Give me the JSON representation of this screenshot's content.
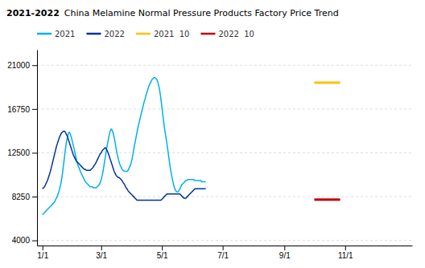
{
  "chart_data": {
    "type": "line",
    "title": "2021-2022",
    "subtitle": "China Melamine Normal Pressure Products Factory Price Trend",
    "xlim": [
      -4.46,
      372.28
    ],
    "xticks": [
      {
        "value": 1,
        "label": "1/1"
      },
      {
        "value": 60,
        "label": "3/1"
      },
      {
        "value": 121,
        "label": "5/1"
      },
      {
        "value": 182,
        "label": "7/1"
      },
      {
        "value": 244,
        "label": "9/1"
      },
      {
        "value": 305,
        "label": "11/1"
      }
    ],
    "ylim": [
      3500,
      22500
    ],
    "yticks": [
      4000,
      8250,
      12500,
      16750,
      21000
    ],
    "grid": true,
    "legend": "top",
    "series": [
      {
        "name": "2021",
        "color": "#00b0f0",
        "x": [
          1,
          2,
          3,
          4,
          5,
          6,
          7,
          8,
          9,
          10,
          11,
          12,
          13,
          14,
          15,
          16,
          17,
          18,
          19,
          20,
          21,
          22,
          23,
          24,
          25,
          26,
          27,
          28,
          29,
          30,
          31,
          32,
          33,
          34,
          35,
          36,
          37,
          38,
          39,
          40,
          41,
          42,
          43,
          44,
          45,
          46,
          47,
          48,
          49,
          50,
          51,
          52,
          53,
          54,
          55,
          56,
          57,
          58,
          59,
          60,
          61,
          62,
          63,
          64,
          65,
          66,
          67,
          68,
          69,
          70,
          71,
          72,
          73,
          74,
          75,
          76,
          77,
          78,
          79,
          80,
          81,
          82,
          83,
          84,
          85,
          86,
          87,
          88,
          89,
          90,
          91,
          92,
          93,
          94,
          95,
          96,
          97,
          98,
          99,
          100,
          101,
          102,
          103,
          104,
          105,
          106,
          107,
          108,
          109,
          110,
          111,
          112,
          113,
          114,
          115,
          116,
          117,
          118,
          119,
          120,
          121,
          122,
          123,
          124,
          125,
          126,
          127,
          128,
          129,
          130,
          131,
          132,
          133,
          134,
          135,
          136,
          137,
          138,
          139,
          140,
          141,
          142,
          143,
          144,
          145,
          146,
          147,
          148,
          149,
          150,
          151,
          152,
          153,
          154,
          155,
          156,
          157,
          158,
          159,
          160,
          161,
          162,
          163,
          164,
          165
        ],
        "values": [
          6500,
          6600,
          6700,
          6800,
          6900,
          7000,
          7100,
          7200,
          7300,
          7400,
          7500,
          7600,
          7700,
          7900,
          8100,
          8300,
          8600,
          8900,
          9300,
          9800,
          10400,
          11200,
          12000,
          12800,
          13500,
          14000,
          14400,
          14500,
          14300,
          14000,
          13600,
          13200,
          12800,
          12300,
          11900,
          11500,
          11200,
          11000,
          10700,
          10500,
          10300,
          10100,
          9900,
          9700,
          9600,
          9500,
          9400,
          9300,
          9200,
          9200,
          9200,
          9100,
          9100,
          9100,
          9100,
          9200,
          9300,
          9400,
          9600,
          9900,
          10300,
          10800,
          11400,
          12000,
          12600,
          13200,
          13700,
          14200,
          14600,
          14800,
          14700,
          14400,
          14000,
          13500,
          12900,
          12400,
          12000,
          11600,
          11300,
          11100,
          10900,
          10800,
          10700,
          10700,
          10700,
          10700,
          10800,
          11000,
          11200,
          11500,
          11900,
          12400,
          13000,
          13500,
          14000,
          14500,
          15000,
          15400,
          15800,
          16200,
          16600,
          17000,
          17400,
          17700,
          18100,
          18400,
          18700,
          19000,
          19200,
          19400,
          19600,
          19700,
          19800,
          19800,
          19700,
          19600,
          19300,
          18900,
          18400,
          17700,
          16900,
          16100,
          15300,
          14600,
          14000,
          13400,
          12700,
          12000,
          11300,
          10700,
          10200,
          9700,
          9300,
          9000,
          8800,
          8700,
          8700,
          8800,
          9000,
          9200,
          9400,
          9500,
          9600,
          9700,
          9800,
          9800,
          9900,
          9900,
          9900,
          9900,
          9900,
          9900,
          9900,
          9800,
          9800,
          9800,
          9800,
          9800,
          9800,
          9800,
          9700,
          9700,
          9700,
          9700,
          9700
        ]
      },
      {
        "name": "2022",
        "color": "#003399",
        "x": [
          1,
          2,
          3,
          4,
          5,
          6,
          7,
          8,
          9,
          10,
          11,
          12,
          13,
          14,
          15,
          16,
          17,
          18,
          19,
          20,
          21,
          22,
          23,
          24,
          25,
          26,
          27,
          28,
          29,
          30,
          31,
          32,
          33,
          34,
          35,
          36,
          37,
          38,
          39,
          40,
          41,
          42,
          43,
          44,
          45,
          46,
          47,
          48,
          49,
          50,
          51,
          52,
          53,
          54,
          55,
          56,
          57,
          58,
          59,
          60,
          61,
          62,
          63,
          64,
          65,
          66,
          67,
          68,
          69,
          70,
          71,
          72,
          73,
          74,
          75,
          76,
          77,
          78,
          79,
          80,
          81,
          82,
          83,
          84,
          85,
          86,
          87,
          88,
          89,
          90,
          91,
          92,
          93,
          94,
          95,
          96,
          97,
          98,
          99,
          100,
          101,
          102,
          103,
          104,
          105,
          106,
          107,
          108,
          109,
          110,
          111,
          112,
          113,
          114,
          115,
          116,
          117,
          118,
          119,
          120,
          121,
          122,
          123,
          124,
          125,
          126,
          127,
          128,
          129,
          130,
          131,
          132,
          133,
          134,
          135,
          136,
          137,
          138,
          139,
          140,
          141,
          142,
          143,
          144,
          145,
          146,
          147,
          148,
          149,
          150,
          151,
          152,
          153,
          154,
          155,
          156,
          157,
          158,
          159,
          160,
          161,
          162,
          163,
          164,
          165
        ],
        "values": [
          9000,
          9100,
          9200,
          9400,
          9600,
          9800,
          10100,
          10400,
          10700,
          11100,
          11500,
          11900,
          12300,
          12700,
          13100,
          13400,
          13700,
          14000,
          14200,
          14400,
          14500,
          14600,
          14600,
          14500,
          14300,
          14100,
          13800,
          13500,
          13200,
          12900,
          12600,
          12300,
          12100,
          11900,
          11700,
          11600,
          11500,
          11400,
          11300,
          11200,
          11100,
          11000,
          10900,
          10900,
          10800,
          10800,
          10800,
          10800,
          10800,
          10900,
          11000,
          11100,
          11300,
          11400,
          11600,
          11800,
          12000,
          12200,
          12400,
          12500,
          12700,
          12800,
          12900,
          13000,
          12900,
          12700,
          12500,
          12200,
          11900,
          11600,
          11300,
          11000,
          10700,
          10500,
          10300,
          10200,
          10100,
          10100,
          10000,
          9900,
          9800,
          9600,
          9500,
          9300,
          9100,
          9000,
          8800,
          8700,
          8600,
          8500,
          8400,
          8300,
          8200,
          8100,
          8000,
          7900,
          7900,
          7900,
          7900,
          7900,
          7900,
          7900,
          7900,
          7900,
          7900,
          7900,
          7900,
          7900,
          7900,
          7900,
          7900,
          7900,
          7900,
          7900,
          7900,
          7900,
          7900,
          7900,
          7900,
          7900,
          8000,
          8100,
          8200,
          8300,
          8400,
          8500,
          8500,
          8500,
          8500,
          8500,
          8500,
          8500,
          8500,
          8500,
          8500,
          8500,
          8500,
          8500,
          8500,
          8400,
          8300,
          8200,
          8100,
          8100,
          8100,
          8200,
          8300,
          8400,
          8500,
          8600,
          8700,
          8800,
          8900,
          9000,
          9000,
          9000,
          9000,
          9000,
          9000,
          9000,
          9000,
          9000,
          9000,
          9000,
          9000
        ]
      },
      {
        "name": "2021  10",
        "color": "#ffc000",
        "x": [
          274,
          300
        ],
        "values": [
          19300,
          19300
        ]
      },
      {
        "name": "2022  10",
        "color": "#c00000",
        "x": [
          274,
          300
        ],
        "values": [
          7950,
          7950
        ]
      }
    ]
  }
}
